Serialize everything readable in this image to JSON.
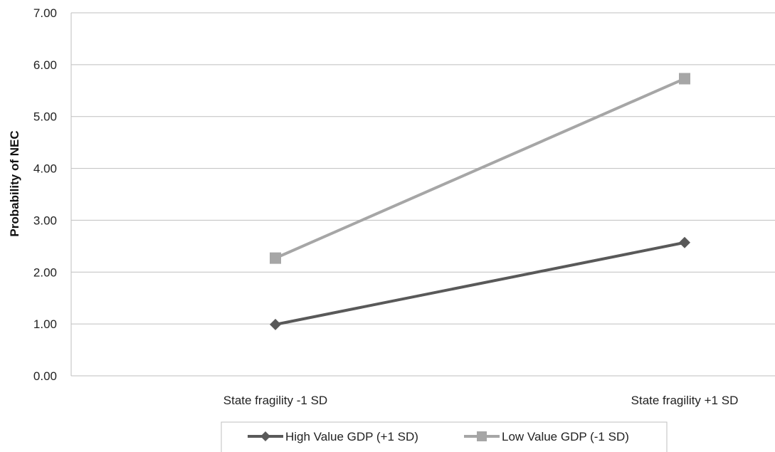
{
  "chart_data": {
    "type": "line",
    "title": "",
    "xlabel": "",
    "ylabel": "Probability of NEC",
    "categories": [
      "State fragility -1 SD",
      "State fragility +1 SD"
    ],
    "ylim": [
      0,
      7
    ],
    "yticks": [
      "0.00",
      "1.00",
      "2.00",
      "3.00",
      "4.00",
      "5.00",
      "6.00",
      "7.00"
    ],
    "grid": true,
    "legend_position": "bottom",
    "series": [
      {
        "name": "High Value GDP (+1 SD)",
        "values": [
          0.99,
          2.57
        ],
        "color": "#595959",
        "marker": "diamond"
      },
      {
        "name": "Low Value GDP (-1 SD)",
        "values": [
          2.27,
          5.73
        ],
        "color": "#a6a6a6",
        "marker": "square"
      }
    ]
  }
}
